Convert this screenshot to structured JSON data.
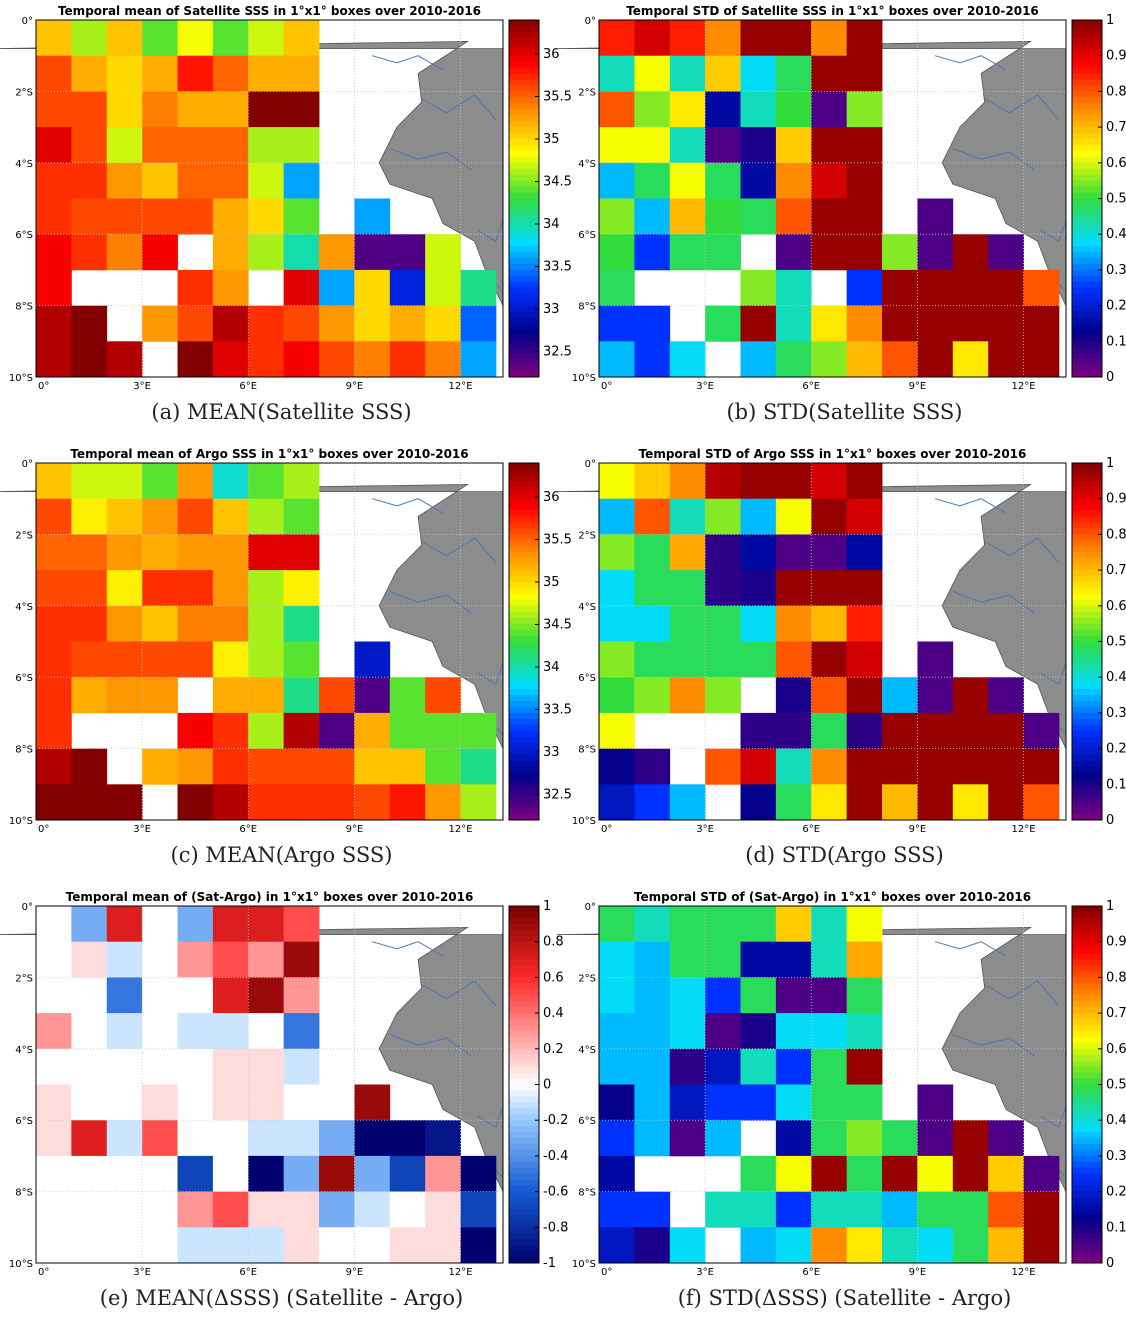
{
  "colors": {
    "land": "#8c8c8c",
    "river": "#4a78b5",
    "grid": "#c8c8c8"
  },
  "chart_data": [
    {
      "type": "heatmap",
      "title": "Temporal mean of Satellite SSS in 1°x1° boxes over 2010-2016",
      "caption": "(a) MEAN(Satellite SSS)",
      "x_ticks": [
        "0°",
        "3°E",
        "6°E",
        "9°E",
        "12°E"
      ],
      "y_ticks": [
        "0°",
        "2°S",
        "4°S",
        "6°S",
        "8°S",
        "10°S"
      ],
      "xlim": [
        0,
        13.2
      ],
      "ylim": [
        -10,
        0
      ],
      "colormap": "jet",
      "clim": [
        32.2,
        36.4
      ],
      "colorbar_ticks": [
        "36",
        "35.5",
        "35",
        "34.5",
        "34",
        "33.5",
        "33",
        "32.5"
      ],
      "values": [
        [
          35.1,
          34.6,
          35.1,
          34.4,
          34.8,
          34.4,
          34.7,
          35.1,
          null,
          null,
          null,
          null,
          null
        ],
        [
          35.6,
          35.2,
          35.0,
          35.2,
          35.8,
          35.5,
          35.2,
          35.2,
          null,
          null,
          null,
          null,
          null
        ],
        [
          35.6,
          35.6,
          35.0,
          35.4,
          35.2,
          35.2,
          36.4,
          36.4,
          null,
          null,
          null,
          null,
          null
        ],
        [
          36.0,
          35.6,
          34.7,
          35.5,
          35.5,
          35.5,
          34.6,
          34.6,
          null,
          null,
          null,
          null,
          null
        ],
        [
          35.7,
          35.7,
          35.3,
          35.1,
          35.5,
          35.5,
          34.7,
          33.6,
          null,
          null,
          null,
          null,
          null
        ],
        [
          35.7,
          35.6,
          35.6,
          35.6,
          35.6,
          35.2,
          35.0,
          34.4,
          null,
          33.6,
          null,
          null,
          null
        ],
        [
          35.9,
          35.7,
          35.4,
          35.9,
          null,
          35.2,
          34.6,
          34.0,
          35.3,
          32.4,
          32.4,
          34.7,
          null
        ],
        [
          35.9,
          null,
          null,
          null,
          35.7,
          35.3,
          null,
          36.0,
          33.6,
          35.0,
          33.1,
          34.7,
          34.1
        ],
        [
          36.2,
          36.4,
          null,
          35.3,
          35.6,
          36.2,
          35.7,
          35.6,
          35.3,
          35.0,
          35.2,
          35.0,
          33.4
        ],
        [
          36.2,
          36.4,
          36.2,
          null,
          36.4,
          36.0,
          35.7,
          35.9,
          35.6,
          35.4,
          35.7,
          35.4,
          33.6
        ]
      ]
    },
    {
      "type": "heatmap",
      "title": "Temporal STD of Satellite SSS in 1°x1° boxes over 2010-2016",
      "caption": "(b) STD(Satellite SSS)",
      "x_ticks": [
        "0°",
        "3°E",
        "6°E",
        "9°E",
        "12°E"
      ],
      "y_ticks": [
        "0°",
        "2°S",
        "4°S",
        "6°S",
        "8°S",
        "10°S"
      ],
      "xlim": [
        0,
        13.2
      ],
      "ylim": [
        -10,
        0
      ],
      "colormap": "jet",
      "clim": [
        0,
        1
      ],
      "colorbar_ticks": [
        "1",
        "0.9",
        "0.8",
        "0.7",
        "0.6",
        "0.5",
        "0.4",
        "0.3",
        "0.2",
        "0.1",
        "0"
      ],
      "values": [
        [
          0.85,
          0.92,
          0.85,
          0.75,
          0.98,
          0.98,
          0.75,
          0.98,
          null,
          null,
          null,
          null,
          null
        ],
        [
          0.42,
          0.62,
          0.42,
          0.68,
          0.38,
          0.48,
          0.98,
          0.98,
          null,
          null,
          null,
          null,
          null
        ],
        [
          0.8,
          0.55,
          0.65,
          0.15,
          0.42,
          0.5,
          0.05,
          0.55,
          null,
          null,
          null,
          null,
          null
        ],
        [
          0.62,
          0.62,
          0.42,
          0.05,
          0.1,
          0.68,
          0.98,
          0.98,
          null,
          null,
          null,
          null,
          null
        ],
        [
          0.35,
          0.48,
          0.62,
          0.48,
          0.15,
          0.75,
          0.92,
          0.98,
          null,
          null,
          null,
          null,
          null
        ],
        [
          0.55,
          0.35,
          0.7,
          0.5,
          0.48,
          0.8,
          0.98,
          0.98,
          null,
          0.05,
          null,
          null,
          null
        ],
        [
          0.5,
          0.25,
          0.48,
          0.48,
          null,
          0.05,
          0.98,
          0.98,
          0.55,
          0.05,
          0.98,
          0.05,
          null
        ],
        [
          0.48,
          null,
          null,
          null,
          0.55,
          0.42,
          null,
          0.25,
          0.98,
          0.98,
          0.98,
          0.98,
          0.8
        ],
        [
          0.25,
          0.25,
          null,
          0.48,
          0.98,
          0.42,
          0.65,
          0.75,
          0.98,
          0.98,
          0.98,
          0.98,
          0.98
        ],
        [
          0.35,
          0.25,
          0.38,
          null,
          0.35,
          0.48,
          0.55,
          0.7,
          0.8,
          0.98,
          0.65,
          0.98,
          0.98
        ]
      ]
    },
    {
      "type": "heatmap",
      "title": "Temporal mean of Argo SSS in 1°x1° boxes over 2010-2016",
      "caption": "(c) MEAN(Argo SSS)",
      "x_ticks": [
        "0°",
        "3°E",
        "6°E",
        "9°E",
        "12°E"
      ],
      "y_ticks": [
        "0°",
        "2°S",
        "4°S",
        "6°S",
        "8°S",
        "10°S"
      ],
      "xlim": [
        0,
        13.2
      ],
      "ylim": [
        -10,
        0
      ],
      "colormap": "jet",
      "clim": [
        32.2,
        36.4
      ],
      "colorbar_ticks": [
        "36",
        "35.5",
        "35",
        "34.5",
        "34",
        "33.5",
        "33",
        "32.5"
      ],
      "values": [
        [
          35.1,
          34.7,
          34.7,
          34.4,
          35.3,
          33.9,
          34.4,
          34.6,
          null,
          null,
          null,
          null,
          null
        ],
        [
          35.6,
          34.9,
          35.1,
          35.3,
          35.6,
          35.1,
          34.6,
          34.4,
          null,
          null,
          null,
          null,
          null
        ],
        [
          35.5,
          35.5,
          35.3,
          35.2,
          35.3,
          35.3,
          36.0,
          36.0,
          null,
          null,
          null,
          null,
          null
        ],
        [
          35.6,
          35.6,
          34.9,
          35.7,
          35.7,
          35.3,
          34.6,
          34.9,
          null,
          null,
          null,
          null,
          null
        ],
        [
          35.7,
          35.7,
          35.3,
          35.1,
          35.4,
          35.4,
          34.6,
          34.1,
          null,
          null,
          null,
          null,
          null
        ],
        [
          35.7,
          35.6,
          35.6,
          35.6,
          35.6,
          34.9,
          34.6,
          34.4,
          null,
          33.0,
          null,
          null,
          null
        ],
        [
          35.7,
          35.2,
          35.3,
          35.3,
          null,
          35.2,
          35.2,
          34.1,
          35.6,
          32.4,
          34.4,
          35.6,
          null
        ],
        [
          35.7,
          null,
          null,
          null,
          35.9,
          35.7,
          34.6,
          36.2,
          32.4,
          35.2,
          34.4,
          34.4,
          34.4
        ],
        [
          36.2,
          36.4,
          null,
          35.2,
          35.3,
          35.7,
          35.6,
          35.6,
          35.6,
          35.1,
          35.1,
          34.4,
          34.1
        ],
        [
          36.4,
          36.4,
          36.4,
          null,
          36.4,
          36.2,
          35.7,
          35.7,
          35.7,
          35.6,
          35.8,
          35.3,
          34.6
        ]
      ]
    },
    {
      "type": "heatmap",
      "title": "Temporal STD of Argo SSS in 1°x1° boxes over 2010-2016",
      "caption": "(d) STD(Argo SSS)",
      "x_ticks": [
        "0°",
        "3°E",
        "6°E",
        "9°E",
        "12°E"
      ],
      "y_ticks": [
        "0°",
        "2°S",
        "4°S",
        "6°S",
        "8°S",
        "10°S"
      ],
      "xlim": [
        0,
        13.2
      ],
      "ylim": [
        -10,
        0
      ],
      "colormap": "jet",
      "clim": [
        0,
        1
      ],
      "colorbar_ticks": [
        "1",
        "0.9",
        "0.8",
        "0.7",
        "0.6",
        "0.5",
        "0.4",
        "0.3",
        "0.2",
        "0.1",
        "0"
      ],
      "values": [
        [
          0.62,
          0.68,
          0.75,
          0.95,
          0.98,
          0.98,
          0.92,
          0.98,
          null,
          null,
          null,
          null,
          null
        ],
        [
          0.35,
          0.8,
          0.42,
          0.55,
          0.35,
          0.62,
          0.98,
          0.92,
          null,
          null,
          null,
          null,
          null
        ],
        [
          0.55,
          0.48,
          0.72,
          0.08,
          0.15,
          0.05,
          0.05,
          0.15,
          null,
          null,
          null,
          null,
          null
        ],
        [
          0.38,
          0.48,
          0.48,
          0.08,
          0.1,
          0.98,
          0.98,
          0.98,
          null,
          null,
          null,
          null,
          null
        ],
        [
          0.38,
          0.38,
          0.48,
          0.48,
          0.38,
          0.75,
          0.7,
          0.85,
          null,
          null,
          null,
          null,
          null
        ],
        [
          0.55,
          0.48,
          0.48,
          0.48,
          0.48,
          0.8,
          0.98,
          0.92,
          null,
          0.05,
          null,
          null,
          null
        ],
        [
          0.5,
          0.55,
          0.75,
          0.55,
          null,
          0.1,
          0.8,
          0.98,
          0.35,
          0.05,
          0.98,
          0.05,
          null
        ],
        [
          0.62,
          null,
          null,
          null,
          0.08,
          0.08,
          0.48,
          0.08,
          0.98,
          0.98,
          0.98,
          0.98,
          0.05
        ],
        [
          0.12,
          0.08,
          null,
          0.8,
          0.92,
          0.42,
          0.75,
          0.98,
          0.98,
          0.98,
          0.98,
          0.98,
          0.98
        ],
        [
          0.18,
          0.25,
          0.35,
          null,
          0.12,
          0.48,
          0.65,
          0.98,
          0.7,
          0.98,
          0.65,
          0.98,
          0.8
        ]
      ]
    },
    {
      "type": "heatmap",
      "title": "Temporal mean of (Sat-Argo) in 1°x1° boxes over 2010-2016",
      "caption": "(e) MEAN(ΔSSS) (Satellite - Argo)",
      "x_ticks": [
        "0°",
        "3°E",
        "6°E",
        "9°E",
        "12°E"
      ],
      "y_ticks": [
        "0°",
        "2°S",
        "4°S",
        "6°S",
        "8°S",
        "10°S"
      ],
      "xlim": [
        0,
        13.2
      ],
      "ylim": [
        -10,
        0
      ],
      "colormap": "blue-white-red",
      "clim": [
        -1,
        1
      ],
      "colorbar_ticks": [
        "1",
        "0.8",
        "0.6",
        "0.4",
        "0.2",
        "0",
        "-0.2",
        "-0.4",
        "-0.6",
        "-0.8",
        "-1"
      ],
      "values": [
        [
          0.0,
          -0.3,
          0.7,
          0.0,
          -0.3,
          0.7,
          0.7,
          0.5,
          null,
          null,
          null,
          null,
          null
        ],
        [
          0.0,
          0.1,
          -0.1,
          0.0,
          0.3,
          0.5,
          0.3,
          0.9,
          null,
          null,
          null,
          null,
          null
        ],
        [
          0.0,
          0.0,
          -0.5,
          0.0,
          0.0,
          0.7,
          0.9,
          0.3,
          null,
          null,
          null,
          null,
          null
        ],
        [
          0.3,
          0.0,
          -0.1,
          0.0,
          -0.1,
          -0.1,
          0.0,
          -0.5,
          null,
          null,
          null,
          null,
          null
        ],
        [
          0.0,
          0.0,
          0.0,
          0.0,
          0.0,
          0.1,
          0.1,
          -0.1,
          null,
          null,
          null,
          null,
          null
        ],
        [
          0.1,
          0.0,
          0.0,
          0.1,
          0.0,
          0.1,
          0.1,
          0.0,
          null,
          0.9,
          null,
          null,
          null
        ],
        [
          0.1,
          0.7,
          -0.1,
          0.5,
          0.0,
          0.0,
          -0.1,
          -0.1,
          -0.3,
          -1.0,
          -1.0,
          -0.9,
          null
        ],
        [
          0.0,
          0.0,
          0.0,
          0.0,
          -0.7,
          0.0,
          -1.0,
          -0.3,
          0.9,
          -0.3,
          -0.7,
          0.3,
          -1.0
        ],
        [
          0.0,
          0.0,
          0.0,
          0.0,
          0.3,
          0.5,
          0.1,
          0.1,
          -0.3,
          -0.1,
          0.0,
          0.1,
          -0.7
        ],
        [
          0.0,
          0.0,
          0.0,
          0.0,
          -0.1,
          -0.1,
          -0.1,
          0.1,
          0.0,
          0.0,
          0.1,
          0.1,
          -1.0
        ]
      ]
    },
    {
      "type": "heatmap",
      "title": "Temporal STD of (Sat-Argo) in 1°x1° boxes over 2010-2016",
      "caption": "(f) STD(ΔSSS) (Satellite - Argo)",
      "x_ticks": [
        "0°",
        "3°E",
        "6°E",
        "9°E",
        "12°E"
      ],
      "y_ticks": [
        "0°",
        "2°S",
        "4°S",
        "6°S",
        "8°S",
        "10°S"
      ],
      "xlim": [
        0,
        13.2
      ],
      "ylim": [
        -10,
        0
      ],
      "colormap": "jet",
      "clim": [
        0,
        1
      ],
      "colorbar_ticks": [
        "1",
        "0.9",
        "0.8",
        "0.7",
        "0.6",
        "0.5",
        "0.4",
        "0.3",
        "0.2",
        "0.1",
        "0"
      ],
      "values": [
        [
          0.48,
          0.42,
          0.48,
          0.48,
          0.48,
          0.68,
          0.42,
          0.62,
          null,
          null,
          null,
          null,
          null
        ],
        [
          0.38,
          0.35,
          0.48,
          0.48,
          0.15,
          0.15,
          0.42,
          0.72,
          null,
          null,
          null,
          null,
          null
        ],
        [
          0.38,
          0.35,
          0.38,
          0.25,
          0.48,
          0.05,
          0.05,
          0.48,
          null,
          null,
          null,
          null,
          null
        ],
        [
          0.35,
          0.35,
          0.38,
          0.05,
          0.1,
          0.38,
          0.38,
          0.42,
          null,
          null,
          null,
          null,
          null
        ],
        [
          0.35,
          0.35,
          0.08,
          0.18,
          0.42,
          0.25,
          0.48,
          0.98,
          null,
          null,
          null,
          null,
          null
        ],
        [
          0.12,
          0.35,
          0.18,
          0.25,
          0.25,
          0.38,
          0.48,
          0.48,
          null,
          0.05,
          null,
          null,
          null
        ],
        [
          0.25,
          0.35,
          0.05,
          0.35,
          null,
          0.15,
          0.48,
          0.55,
          0.48,
          0.05,
          0.98,
          0.05,
          null
        ],
        [
          0.15,
          null,
          null,
          null,
          0.48,
          0.62,
          0.98,
          0.48,
          0.98,
          0.62,
          0.98,
          0.68,
          0.05
        ],
        [
          0.25,
          0.25,
          null,
          0.42,
          0.42,
          0.25,
          0.42,
          0.42,
          0.35,
          0.48,
          0.48,
          0.8,
          0.98
        ],
        [
          0.18,
          0.1,
          0.38,
          null,
          0.35,
          0.38,
          0.75,
          0.65,
          0.42,
          0.38,
          0.48,
          0.7,
          0.98
        ]
      ]
    }
  ]
}
